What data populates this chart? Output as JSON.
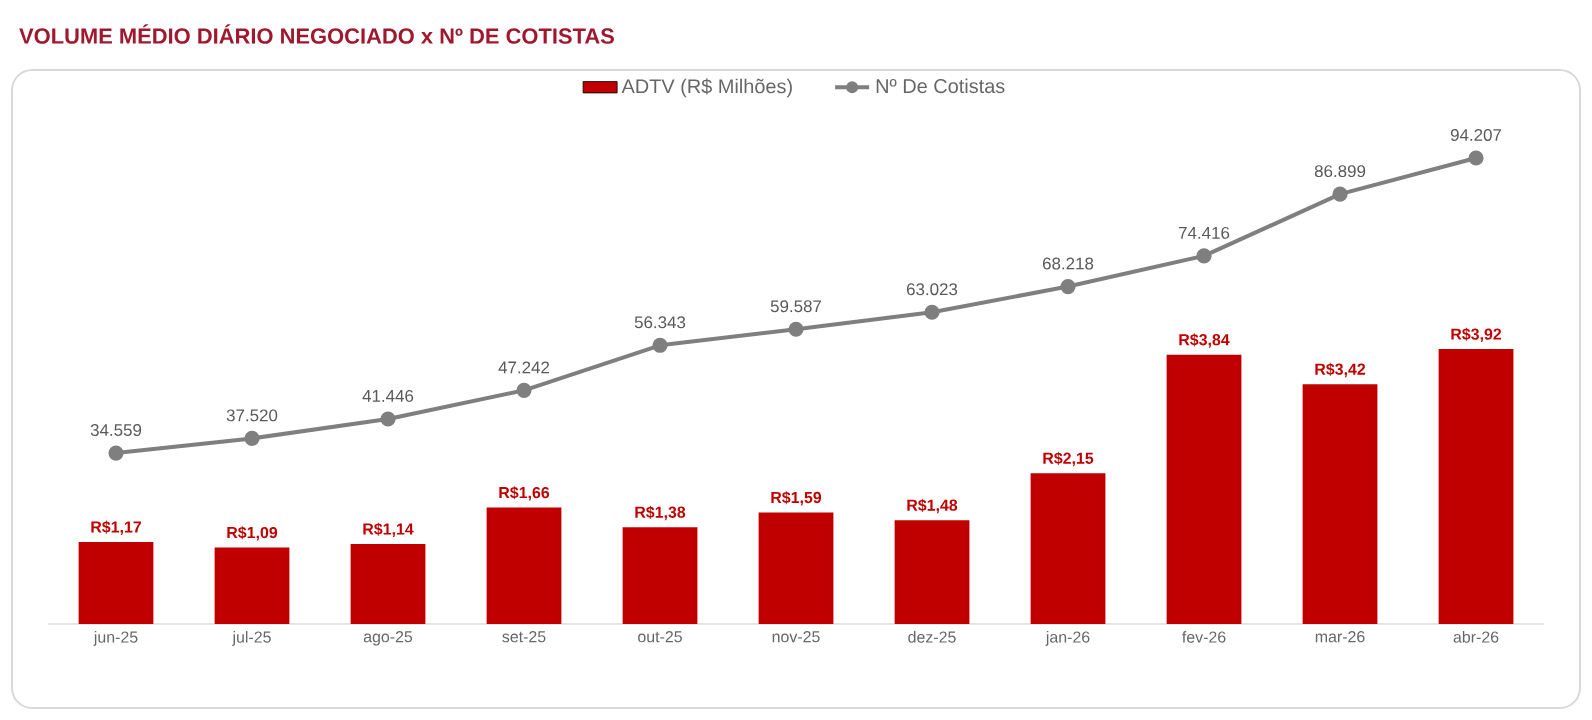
{
  "chart_data": {
    "type": "bar",
    "title": "VOLUME MÉDIO DIÁRIO NEGOCIADO x Nº DE COTISTAS",
    "categories": [
      "jun-25",
      "jul-25",
      "ago-25",
      "set-25",
      "out-25",
      "nov-25",
      "dez-25",
      "jan-26",
      "fev-26",
      "mar-26",
      "abr-26"
    ],
    "legend": "top",
    "tick_labels": "x",
    "ylim": [
      0,
      7.9
    ],
    "y2lim": [
      0,
      112000
    ],
    "series": [
      {
        "name": "ADTV (R$ Milhões)",
        "color": "#c00000",
        "values": [
          1.17,
          1.09,
          1.14,
          1.66,
          1.38,
          1.59,
          1.48,
          2.15,
          3.84,
          3.42,
          3.92
        ],
        "value_labels": [
          "R$1,17",
          "R$1,09",
          "R$1,14",
          "R$1,66",
          "R$1,38",
          "R$1,59",
          "R$1,48",
          "R$2,15",
          "R$3,84",
          "R$3,42",
          "R$3,92"
        ]
      },
      {
        "name": "Nº De Cotistas",
        "type": "line",
        "axis": "y2",
        "color": "#7f7f7f",
        "marker": "circle",
        "values": [
          34559,
          37520,
          41446,
          47242,
          56343,
          59587,
          63023,
          68218,
          74416,
          86899,
          94207
        ],
        "value_labels": [
          "34.559",
          "37.520",
          "41.446",
          "47.242",
          "56.343",
          "59.587",
          "63.023",
          "68.218",
          "74.416",
          "86.899",
          "94.207"
        ]
      }
    ]
  }
}
